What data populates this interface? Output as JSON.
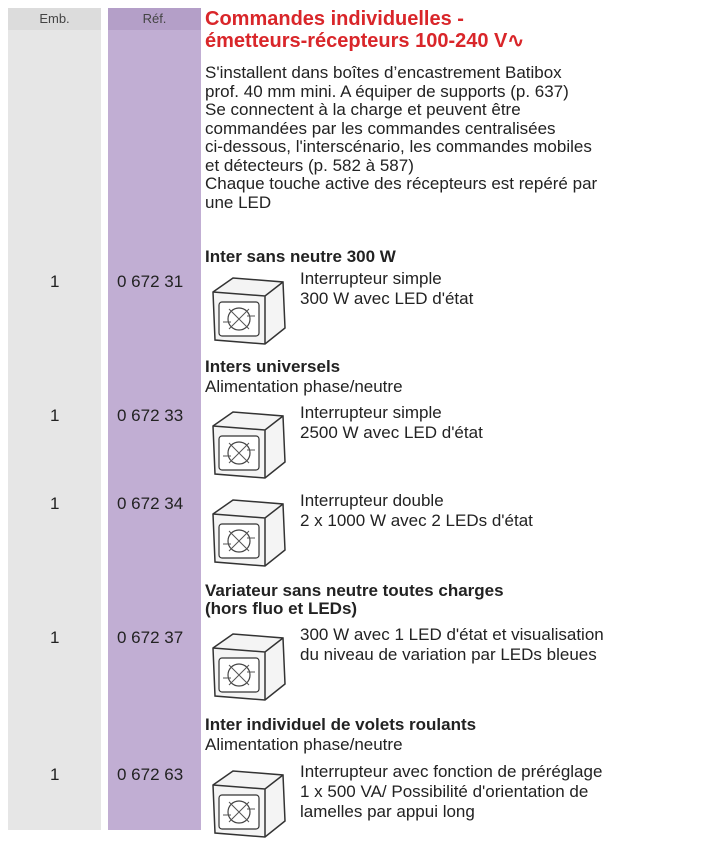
{
  "header": {
    "emb": "Emb.",
    "ref": "Réf."
  },
  "title": [
    "Commandes individuelles -",
    "émetteurs-récepteurs 100-240 V∿"
  ],
  "intro": [
    "S'installent dans boîtes d’encastrement Batibox",
    "prof. 40 mm mini. A équiper de supports (p. 637)",
    "Se connectent à la charge et peuvent être",
    "commandées par les commandes centralisées",
    "ci-dessous, l'interscénario, les commandes mobiles",
    "et détecteurs (p. 582 à 587)",
    "Chaque touche active des récepteurs est repéré par",
    "une LED"
  ],
  "sections": [
    {
      "heading": [
        "Inter sans neutre 300 W"
      ],
      "items": [
        {
          "emb": "1",
          "ref": "0 672 31",
          "desc": [
            "Interrupteur simple",
            "300 W avec LED d'état"
          ]
        }
      ]
    },
    {
      "heading": [
        "Inters universels"
      ],
      "subheading": "Alimentation phase/neutre",
      "items": [
        {
          "emb": "1",
          "ref": "0 672 33",
          "desc": [
            "Interrupteur simple",
            "2500 W avec LED d'état"
          ]
        },
        {
          "emb": "1",
          "ref": "0 672 34",
          "desc": [
            "Interrupteur double",
            "2 x 1000 W avec 2 LEDs d'état"
          ]
        }
      ]
    },
    {
      "heading": [
        "Variateur sans neutre toutes charges",
        "(hors fluo et LEDs)"
      ],
      "items": [
        {
          "emb": "1",
          "ref": "0 672 37",
          "desc": [
            "300 W avec 1 LED d'état et visualisation",
            "du niveau de variation par LEDs bleues"
          ]
        }
      ]
    },
    {
      "heading": [
        "Inter individuel de volets roulants"
      ],
      "subheading": "Alimentation phase/neutre",
      "items": [
        {
          "emb": "1",
          "ref": "0 672 63",
          "desc": [
            "Interrupteur avec fonction de préréglage",
            "1 x 500 VA/ Possibilité d'orientation de",
            "lamelles par appui long"
          ]
        }
      ]
    }
  ]
}
